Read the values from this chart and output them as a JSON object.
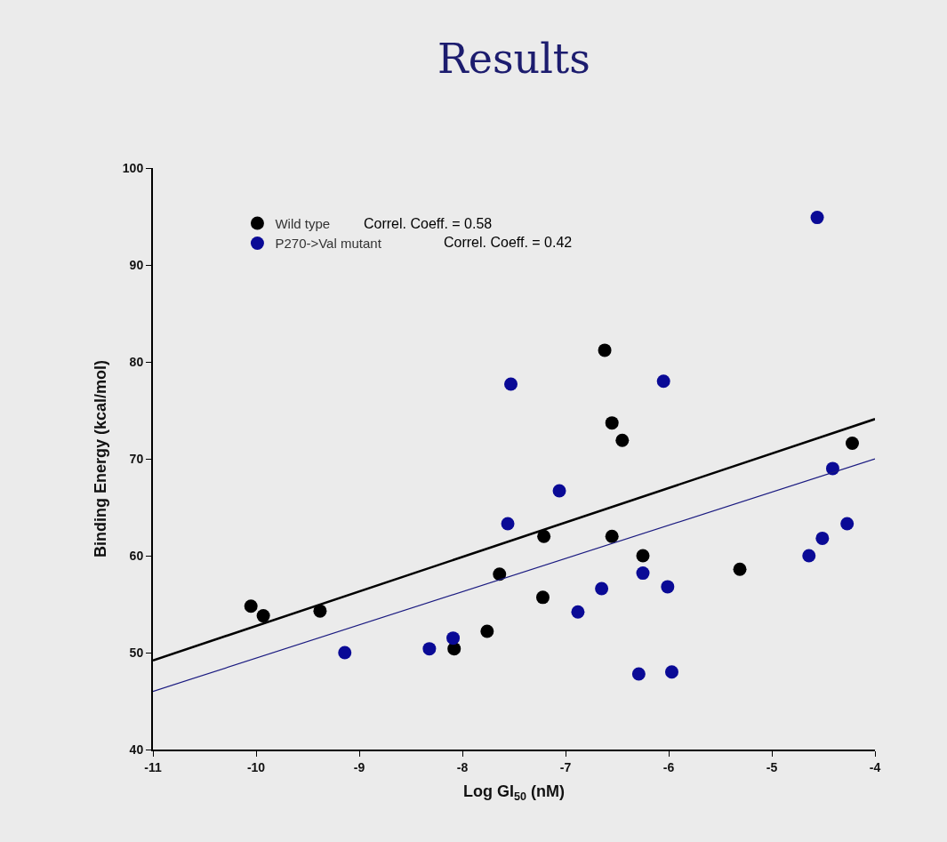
{
  "chart_data": {
    "type": "scatter",
    "title": "Results",
    "xlabel": "Log GI$_{50}$ (nM)",
    "ylabel": "Binding Energy (kcal/mol)",
    "annotations": [
      "Correl. Coeff. = 0.58",
      "Correl. Coeff. = 0.42"
    ],
    "xlim": [
      -11,
      -4
    ],
    "xticks": [
      -11,
      -10,
      -9,
      -8,
      -7,
      -6,
      -5,
      -4
    ],
    "ylim": [
      40,
      100
    ],
    "yticks": [
      40,
      50,
      60,
      70,
      80,
      90,
      100
    ],
    "grid": false,
    "legend": "top left",
    "series": [
      {
        "name": "Wild type",
        "color": "#000000",
        "marker": "circle",
        "x": [
          -10.05,
          -9.93,
          -9.38,
          -8.08,
          -7.76,
          -7.64,
          -7.22,
          -7.21,
          -6.62,
          -6.55,
          -6.45,
          -6.55,
          -6.25,
          -5.31,
          -4.22
        ],
        "values": [
          54.8,
          53.8,
          54.3,
          50.4,
          52.2,
          58.1,
          55.7,
          62.0,
          81.2,
          73.7,
          71.9,
          62.0,
          60.0,
          58.6,
          71.6
        ]
      },
      {
        "name": "P270->Val mutant",
        "color": "#0a0a96",
        "marker": "circle",
        "x": [
          -9.14,
          -8.32,
          -8.09,
          -7.56,
          -7.53,
          -7.06,
          -6.88,
          -6.65,
          -6.29,
          -6.25,
          -6.05,
          -6.01,
          -5.97,
          -4.64,
          -4.56,
          -4.51,
          -4.41,
          -4.27
        ],
        "values": [
          50.0,
          50.4,
          51.5,
          63.3,
          77.7,
          66.7,
          54.2,
          56.6,
          47.8,
          58.2,
          78.0,
          56.8,
          48.0,
          60.0,
          94.9,
          61.8,
          69.0,
          63.3
        ]
      },
      {
        "type": "line",
        "color": "#000000",
        "marker": "none",
        "x": [
          -11,
          -4
        ],
        "values": [
          49.2,
          74.1
        ]
      },
      {
        "type": "line",
        "color": "#1a1a80",
        "marker": "none",
        "x": [
          -11,
          -4
        ],
        "values": [
          46.0,
          70.0
        ]
      }
    ]
  }
}
